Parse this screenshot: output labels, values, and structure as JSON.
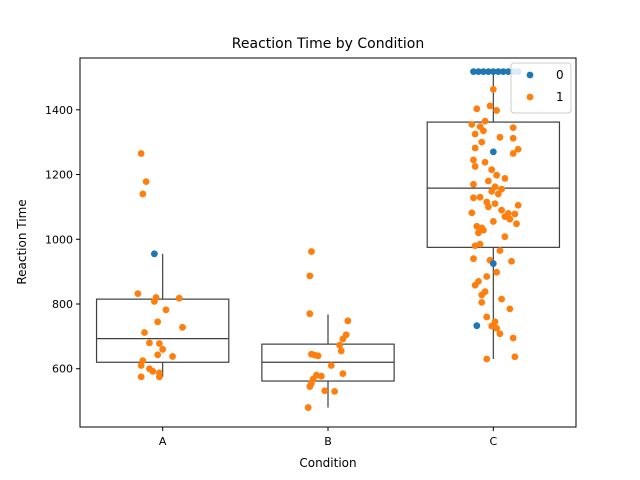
{
  "chart_data": {
    "type": "scatter",
    "subtype": "box-strip",
    "title": "Reaction Time by Condition",
    "xlabel": "Condition",
    "ylabel": "Reaction Time",
    "categories": [
      "A",
      "B",
      "C"
    ],
    "ylim": [
      420,
      1560
    ],
    "yticks": [
      600,
      800,
      1000,
      1200,
      1400
    ],
    "grid": false,
    "legend": {
      "placement": "top-right",
      "entries": [
        {
          "label": "0",
          "color": "#1f77b4"
        },
        {
          "label": "1",
          "color": "#ff7f0e"
        }
      ]
    },
    "boxes": [
      {
        "category": "A",
        "whisker_low": 575,
        "q1": 620,
        "median": 693,
        "q3": 815,
        "whisker_high": 955
      },
      {
        "category": "B",
        "whisker_low": 480,
        "q1": 562,
        "median": 620,
        "q3": 676,
        "whisker_high": 768
      },
      {
        "category": "C",
        "whisker_low": 630,
        "q1": 975,
        "median": 1158,
        "q3": 1362,
        "whisker_high": 1518
      }
    ],
    "series": [
      {
        "name": "0",
        "color": "#1f77b4",
        "points": [
          {
            "category": "A",
            "x": -0.05,
            "y": 955
          },
          {
            "category": "C",
            "x": -0.1,
            "y": 733
          },
          {
            "category": "C",
            "x": 0.0,
            "y": 925
          },
          {
            "category": "C",
            "x": 0.0,
            "y": 1270
          },
          {
            "category": "C",
            "x": -0.12,
            "y": 1518
          },
          {
            "category": "C",
            "x": -0.09,
            "y": 1518
          },
          {
            "category": "C",
            "x": -0.06,
            "y": 1518
          },
          {
            "category": "C",
            "x": -0.03,
            "y": 1518
          },
          {
            "category": "C",
            "x": 0.0,
            "y": 1518
          },
          {
            "category": "C",
            "x": 0.03,
            "y": 1518
          },
          {
            "category": "C",
            "x": 0.06,
            "y": 1518
          },
          {
            "category": "C",
            "x": 0.09,
            "y": 1518
          },
          {
            "category": "C",
            "x": 0.12,
            "y": 1518
          },
          {
            "category": "C",
            "x": 0.15,
            "y": 1518
          }
        ]
      },
      {
        "name": "1",
        "color": "#ff7f0e",
        "points": [
          {
            "category": "A",
            "x": -0.13,
            "y": 1265
          },
          {
            "category": "A",
            "x": -0.1,
            "y": 1178
          },
          {
            "category": "A",
            "x": -0.12,
            "y": 1140
          },
          {
            "category": "A",
            "x": -0.15,
            "y": 832
          },
          {
            "category": "A",
            "x": -0.04,
            "y": 820
          },
          {
            "category": "A",
            "x": 0.1,
            "y": 818
          },
          {
            "category": "A",
            "x": -0.05,
            "y": 808
          },
          {
            "category": "A",
            "x": 0.02,
            "y": 782
          },
          {
            "category": "A",
            "x": -0.03,
            "y": 745
          },
          {
            "category": "A",
            "x": 0.12,
            "y": 728
          },
          {
            "category": "A",
            "x": -0.11,
            "y": 712
          },
          {
            "category": "A",
            "x": -0.08,
            "y": 680
          },
          {
            "category": "A",
            "x": -0.02,
            "y": 678
          },
          {
            "category": "A",
            "x": 0.0,
            "y": 660
          },
          {
            "category": "A",
            "x": -0.03,
            "y": 643
          },
          {
            "category": "A",
            "x": 0.06,
            "y": 638
          },
          {
            "category": "A",
            "x": -0.12,
            "y": 625
          },
          {
            "category": "A",
            "x": -0.13,
            "y": 610
          },
          {
            "category": "A",
            "x": -0.08,
            "y": 600
          },
          {
            "category": "A",
            "x": -0.06,
            "y": 592
          },
          {
            "category": "A",
            "x": -0.02,
            "y": 587
          },
          {
            "category": "A",
            "x": -0.13,
            "y": 575
          },
          {
            "category": "A",
            "x": -0.02,
            "y": 575
          },
          {
            "category": "B",
            "x": -0.1,
            "y": 962
          },
          {
            "category": "B",
            "x": -0.11,
            "y": 887
          },
          {
            "category": "B",
            "x": -0.11,
            "y": 770
          },
          {
            "category": "B",
            "x": 0.12,
            "y": 748
          },
          {
            "category": "B",
            "x": 0.11,
            "y": 705
          },
          {
            "category": "B",
            "x": 0.09,
            "y": 692
          },
          {
            "category": "B",
            "x": 0.07,
            "y": 673
          },
          {
            "category": "B",
            "x": 0.08,
            "y": 655
          },
          {
            "category": "B",
            "x": -0.1,
            "y": 645
          },
          {
            "category": "B",
            "x": -0.08,
            "y": 642
          },
          {
            "category": "B",
            "x": -0.06,
            "y": 640
          },
          {
            "category": "B",
            "x": 0.02,
            "y": 610
          },
          {
            "category": "B",
            "x": 0.09,
            "y": 585
          },
          {
            "category": "B",
            "x": -0.07,
            "y": 580
          },
          {
            "category": "B",
            "x": -0.04,
            "y": 577
          },
          {
            "category": "B",
            "x": -0.09,
            "y": 568
          },
          {
            "category": "B",
            "x": -0.1,
            "y": 555
          },
          {
            "category": "B",
            "x": -0.11,
            "y": 545
          },
          {
            "category": "B",
            "x": -0.02,
            "y": 532
          },
          {
            "category": "B",
            "x": 0.04,
            "y": 530
          },
          {
            "category": "B",
            "x": -0.12,
            "y": 480
          },
          {
            "category": "C",
            "x": 0.0,
            "y": 1463
          },
          {
            "category": "C",
            "x": -0.02,
            "y": 1412
          },
          {
            "category": "C",
            "x": -0.1,
            "y": 1403
          },
          {
            "category": "C",
            "x": 0.02,
            "y": 1398
          },
          {
            "category": "C",
            "x": -0.05,
            "y": 1365
          },
          {
            "category": "C",
            "x": -0.13,
            "y": 1355
          },
          {
            "category": "C",
            "x": -0.08,
            "y": 1348
          },
          {
            "category": "C",
            "x": 0.12,
            "y": 1345
          },
          {
            "category": "C",
            "x": -0.06,
            "y": 1335
          },
          {
            "category": "C",
            "x": -0.11,
            "y": 1325
          },
          {
            "category": "C",
            "x": 0.04,
            "y": 1315
          },
          {
            "category": "C",
            "x": 0.12,
            "y": 1312
          },
          {
            "category": "C",
            "x": -0.07,
            "y": 1300
          },
          {
            "category": "C",
            "x": -0.11,
            "y": 1282
          },
          {
            "category": "C",
            "x": 0.15,
            "y": 1278
          },
          {
            "category": "C",
            "x": 0.12,
            "y": 1265
          },
          {
            "category": "C",
            "x": -0.12,
            "y": 1245
          },
          {
            "category": "C",
            "x": -0.05,
            "y": 1238
          },
          {
            "category": "C",
            "x": -0.11,
            "y": 1225
          },
          {
            "category": "C",
            "x": -0.01,
            "y": 1215
          },
          {
            "category": "C",
            "x": 0.02,
            "y": 1198
          },
          {
            "category": "C",
            "x": 0.07,
            "y": 1188
          },
          {
            "category": "C",
            "x": -0.03,
            "y": 1180
          },
          {
            "category": "C",
            "x": -0.12,
            "y": 1170
          },
          {
            "category": "C",
            "x": 0.01,
            "y": 1162
          },
          {
            "category": "C",
            "x": 0.05,
            "y": 1155
          },
          {
            "category": "C",
            "x": -0.01,
            "y": 1148
          },
          {
            "category": "C",
            "x": 0.03,
            "y": 1140
          },
          {
            "category": "C",
            "x": -0.08,
            "y": 1130
          },
          {
            "category": "C",
            "x": -0.12,
            "y": 1128
          },
          {
            "category": "C",
            "x": -0.04,
            "y": 1115
          },
          {
            "category": "C",
            "x": 0.01,
            "y": 1110
          },
          {
            "category": "C",
            "x": 0.15,
            "y": 1105
          },
          {
            "category": "C",
            "x": -0.03,
            "y": 1100
          },
          {
            "category": "C",
            "x": 0.05,
            "y": 1090
          },
          {
            "category": "C",
            "x": -0.13,
            "y": 1082
          },
          {
            "category": "C",
            "x": 0.09,
            "y": 1080
          },
          {
            "category": "C",
            "x": 0.13,
            "y": 1078
          },
          {
            "category": "C",
            "x": 0.07,
            "y": 1070
          },
          {
            "category": "C",
            "x": 0.1,
            "y": 1062
          },
          {
            "category": "C",
            "x": 0.0,
            "y": 1055
          },
          {
            "category": "C",
            "x": 0.14,
            "y": 1048
          },
          {
            "category": "C",
            "x": -0.1,
            "y": 1040
          },
          {
            "category": "C",
            "x": -0.07,
            "y": 1035
          },
          {
            "category": "C",
            "x": -0.06,
            "y": 1028
          },
          {
            "category": "C",
            "x": -0.09,
            "y": 1020
          },
          {
            "category": "C",
            "x": 0.07,
            "y": 1008
          },
          {
            "category": "C",
            "x": -0.08,
            "y": 985
          },
          {
            "category": "C",
            "x": -0.11,
            "y": 980
          },
          {
            "category": "C",
            "x": 0.04,
            "y": 965
          },
          {
            "category": "C",
            "x": -0.12,
            "y": 940
          },
          {
            "category": "C",
            "x": -0.02,
            "y": 935
          },
          {
            "category": "C",
            "x": 0.11,
            "y": 932
          },
          {
            "category": "C",
            "x": 0.02,
            "y": 898
          },
          {
            "category": "C",
            "x": -0.04,
            "y": 885
          },
          {
            "category": "C",
            "x": -0.09,
            "y": 870
          },
          {
            "category": "C",
            "x": -0.11,
            "y": 858
          },
          {
            "category": "C",
            "x": -0.05,
            "y": 838
          },
          {
            "category": "C",
            "x": -0.07,
            "y": 828
          },
          {
            "category": "C",
            "x": 0.05,
            "y": 815
          },
          {
            "category": "C",
            "x": -0.07,
            "y": 805
          },
          {
            "category": "C",
            "x": 0.1,
            "y": 785
          },
          {
            "category": "C",
            "x": -0.04,
            "y": 760
          },
          {
            "category": "C",
            "x": 0.01,
            "y": 745
          },
          {
            "category": "C",
            "x": -0.01,
            "y": 732
          },
          {
            "category": "C",
            "x": 0.02,
            "y": 725
          },
          {
            "category": "C",
            "x": 0.04,
            "y": 708
          },
          {
            "category": "C",
            "x": 0.12,
            "y": 695
          },
          {
            "category": "C",
            "x": 0.13,
            "y": 637
          },
          {
            "category": "C",
            "x": -0.04,
            "y": 630
          }
        ]
      }
    ]
  }
}
